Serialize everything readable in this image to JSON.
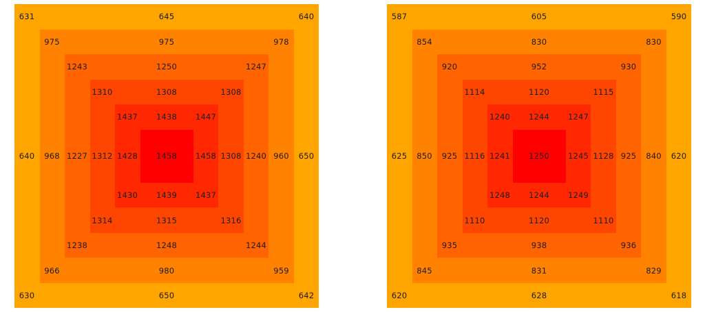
{
  "colors": [
    "#ffa500",
    "#ff8200",
    "#ff6400",
    "#ff4600",
    "#ff2800",
    "#ff0000"
  ],
  "panels": [
    {
      "rings": [
        {
          "tl": "631",
          "t": "645",
          "tr": "640",
          "l": "640",
          "r": "650",
          "bl": "630",
          "b": "650",
          "br": "642"
        },
        {
          "tl": "975",
          "t": "975",
          "tr": "978",
          "l": "968",
          "r": "960",
          "bl": "966",
          "b": "980",
          "br": "959"
        },
        {
          "tl": "1243",
          "t": "1250",
          "tr": "1247",
          "l": "1227",
          "r": "1240",
          "bl": "1238",
          "b": "1248",
          "br": "1244"
        },
        {
          "tl": "1310",
          "t": "1308",
          "tr": "1308",
          "l": "1312",
          "r": "1308",
          "bl": "1314",
          "b": "1315",
          "br": "1316"
        },
        {
          "tl": "1437",
          "t": "1438",
          "tr": "1447",
          "l": "1428",
          "r": "1458",
          "bl": "1430",
          "b": "1439",
          "br": "1437"
        },
        {
          "c": "1458"
        }
      ]
    },
    {
      "rings": [
        {
          "tl": "587",
          "t": "605",
          "tr": "590",
          "l": "625",
          "r": "620",
          "bl": "620",
          "b": "628",
          "br": "618"
        },
        {
          "tl": "854",
          "t": "830",
          "tr": "830",
          "l": "850",
          "r": "840",
          "bl": "845",
          "b": "831",
          "br": "829"
        },
        {
          "tl": "920",
          "t": "952",
          "tr": "930",
          "l": "925",
          "r": "925",
          "bl": "935",
          "b": "938",
          "br": "936"
        },
        {
          "tl": "1114",
          "t": "1120",
          "tr": "1115",
          "l": "1116",
          "r": "1128",
          "bl": "1110",
          "b": "1120",
          "br": "1110"
        },
        {
          "tl": "1240",
          "t": "1244",
          "tr": "1247",
          "l": "1241",
          "r": "1245",
          "bl": "1248",
          "b": "1244",
          "br": "1249"
        },
        {
          "c": "1250"
        }
      ]
    }
  ]
}
